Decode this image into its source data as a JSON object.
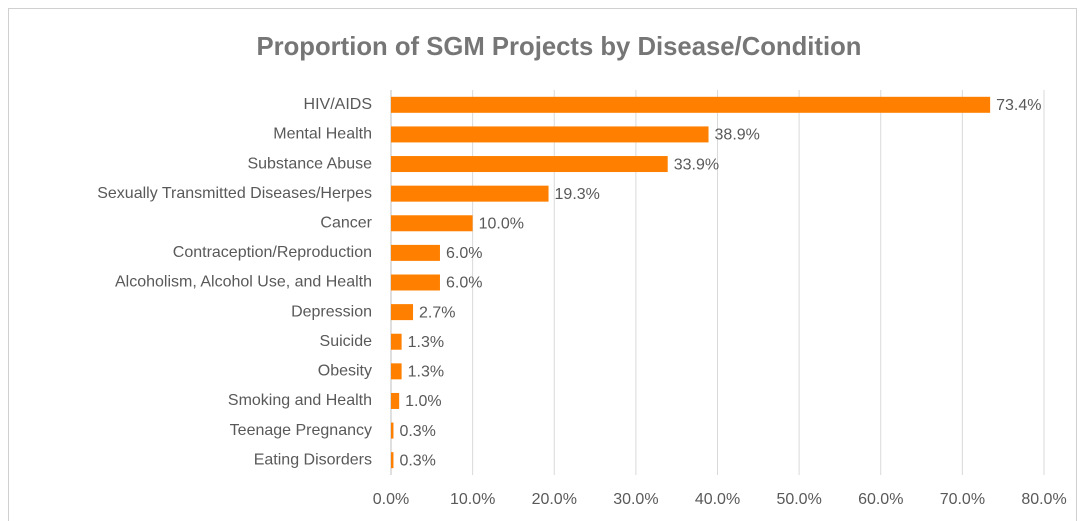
{
  "chart_data": {
    "type": "bar",
    "orientation": "horizontal",
    "title": "Proportion of SGM Projects by Disease/Condition",
    "categories": [
      "HIV/AIDS",
      "Mental Health",
      "Substance Abuse",
      "Sexually Transmitted Diseases/Herpes",
      "Cancer",
      "Contraception/Reproduction",
      "Alcoholism, Alcohol Use, and Health",
      "Depression",
      "Suicide",
      "Obesity",
      "Smoking and Health",
      "Teenage Pregnancy",
      "Eating Disorders"
    ],
    "values": [
      73.4,
      38.9,
      33.9,
      19.3,
      10.0,
      6.0,
      6.0,
      2.7,
      1.3,
      1.3,
      1.0,
      0.3,
      0.3
    ],
    "value_labels": [
      "73.4%",
      "38.9%",
      "33.9%",
      "19.3%",
      "10.0%",
      "6.0%",
      "6.0%",
      "2.7%",
      "1.3%",
      "1.3%",
      "1.0%",
      "0.3%",
      "0.3%"
    ],
    "color": "#ff8000",
    "xlim": [
      0,
      80
    ],
    "xticks": [
      {
        "value": 0,
        "label": "0.0%"
      },
      {
        "value": 10,
        "label": "10.0%"
      },
      {
        "value": 20,
        "label": "20.0%"
      },
      {
        "value": 30,
        "label": "30.0%"
      },
      {
        "value": 40,
        "label": "40.0%"
      },
      {
        "value": 50,
        "label": "50.0%"
      },
      {
        "value": 60,
        "label": "60.0%"
      },
      {
        "value": 70,
        "label": "70.0%"
      },
      {
        "value": 80,
        "label": "80.0%"
      }
    ],
    "grid": true
  }
}
